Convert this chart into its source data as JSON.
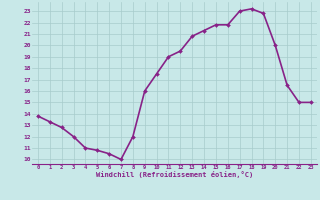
{
  "x": [
    0,
    1,
    2,
    3,
    4,
    5,
    6,
    7,
    8,
    9,
    10,
    11,
    12,
    13,
    14,
    15,
    16,
    17,
    18,
    19,
    20,
    21,
    22,
    23
  ],
  "y": [
    13.8,
    13.3,
    12.8,
    12.0,
    11.0,
    10.8,
    10.5,
    10.0,
    12.0,
    16.0,
    17.5,
    19.0,
    19.5,
    20.8,
    21.3,
    21.8,
    21.8,
    23.0,
    23.2,
    22.8,
    20.0,
    16.5,
    15.0,
    15.0
  ],
  "line_color": "#882288",
  "marker": "D",
  "marker_size": 2.0,
  "bg_color": "#c8e8e8",
  "grid_color": "#a8cccc",
  "xlabel": "Windchill (Refroidissement éolien,°C)",
  "xlabel_color": "#882288",
  "tick_color": "#882288",
  "ylabel_ticks": [
    10,
    11,
    12,
    13,
    14,
    15,
    16,
    17,
    18,
    19,
    20,
    21,
    22,
    23
  ],
  "xlim": [
    -0.5,
    23.5
  ],
  "ylim": [
    9.6,
    23.8
  ],
  "line_width": 1.2,
  "marker_color": "#882288"
}
